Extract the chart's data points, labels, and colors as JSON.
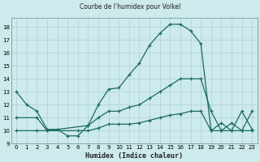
{
  "title": "Courbe de l'humidex pour Volkel",
  "xlabel": "Humidex (Indice chaleur)",
  "xlim": [
    -0.5,
    23.5
  ],
  "ylim": [
    9,
    18.7
  ],
  "yticks": [
    9,
    10,
    11,
    12,
    13,
    14,
    15,
    16,
    17,
    18
  ],
  "xticks": [
    0,
    1,
    2,
    3,
    4,
    5,
    6,
    7,
    8,
    9,
    10,
    11,
    12,
    13,
    14,
    15,
    16,
    17,
    18,
    19,
    20,
    21,
    22,
    23
  ],
  "bg_color": "#cdeaec",
  "grid_color": "#b8d8da",
  "line_color": "#1a6b60",
  "line1_x": [
    0,
    1,
    2,
    3,
    4,
    5,
    6,
    7,
    8,
    9,
    10,
    11,
    12,
    13,
    14,
    15,
    16,
    17,
    18,
    19,
    20,
    21,
    22,
    23
  ],
  "line1_y": [
    13.0,
    12.0,
    11.5,
    10.1,
    10.1,
    9.6,
    9.6,
    10.4,
    12.0,
    13.2,
    13.3,
    14.3,
    15.2,
    16.6,
    17.5,
    18.2,
    18.2,
    17.7,
    16.7,
    10.0,
    10.6,
    10.0,
    11.5,
    10.1
  ],
  "line2_x": [
    0,
    2,
    3,
    7,
    8,
    9,
    10,
    11,
    12,
    13,
    14,
    15,
    16,
    17,
    18,
    19,
    20,
    21,
    22,
    23
  ],
  "line2_y": [
    11.0,
    11.0,
    10.0,
    10.4,
    11.0,
    11.5,
    11.5,
    11.8,
    12.0,
    12.5,
    13.0,
    13.5,
    14.0,
    14.0,
    14.0,
    11.5,
    10.0,
    10.0,
    10.0,
    10.0
  ],
  "line3_x": [
    0,
    2,
    3,
    6,
    7,
    8,
    9,
    10,
    11,
    12,
    13,
    14,
    15,
    16,
    17,
    18,
    19,
    20,
    21,
    22,
    23
  ],
  "line3_y": [
    10.0,
    10.0,
    10.0,
    10.0,
    10.0,
    10.2,
    10.5,
    10.5,
    10.5,
    10.6,
    10.8,
    11.0,
    11.2,
    11.3,
    11.5,
    11.5,
    10.0,
    10.0,
    10.6,
    10.0,
    11.5
  ]
}
